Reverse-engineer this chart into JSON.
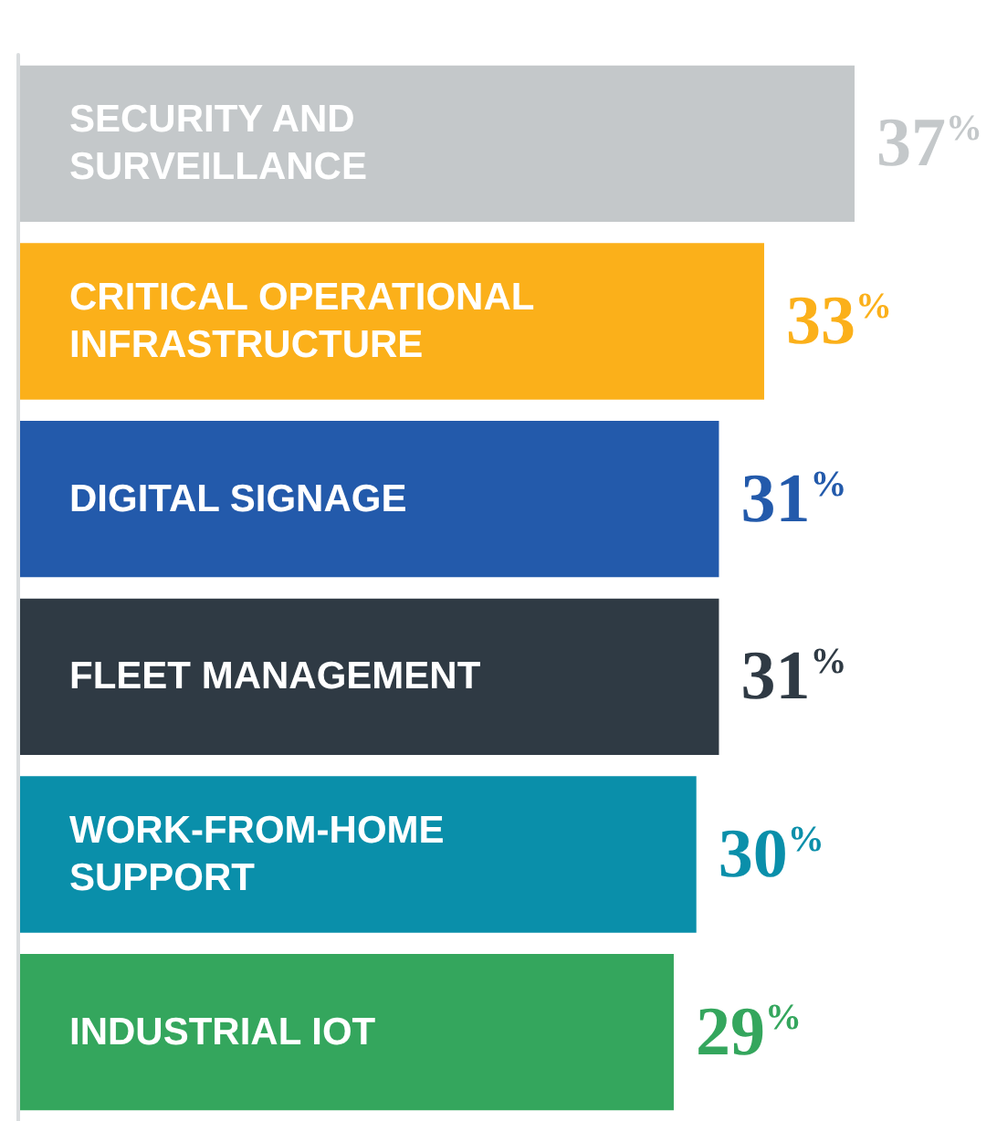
{
  "chart_data": {
    "type": "bar",
    "orientation": "horizontal",
    "categories": [
      "SECURITY AND SURVEILLANCE",
      "CRITICAL OPERATIONAL INFRASTRUCTURE",
      "DIGITAL SIGNAGE",
      "FLEET MANAGEMENT",
      "WORK-FROM-HOME SUPPORT",
      "INDUSTRIAL IOT"
    ],
    "values": [
      37,
      33,
      31,
      31,
      30,
      29
    ],
    "colors": [
      "#c4c8ca",
      "#fbb01a",
      "#235aab",
      "#2f3a44",
      "#0a8faa",
      "#34a65d"
    ],
    "value_labels": [
      "37%",
      "33%",
      "31%",
      "31%",
      "30%",
      "29%"
    ]
  }
}
